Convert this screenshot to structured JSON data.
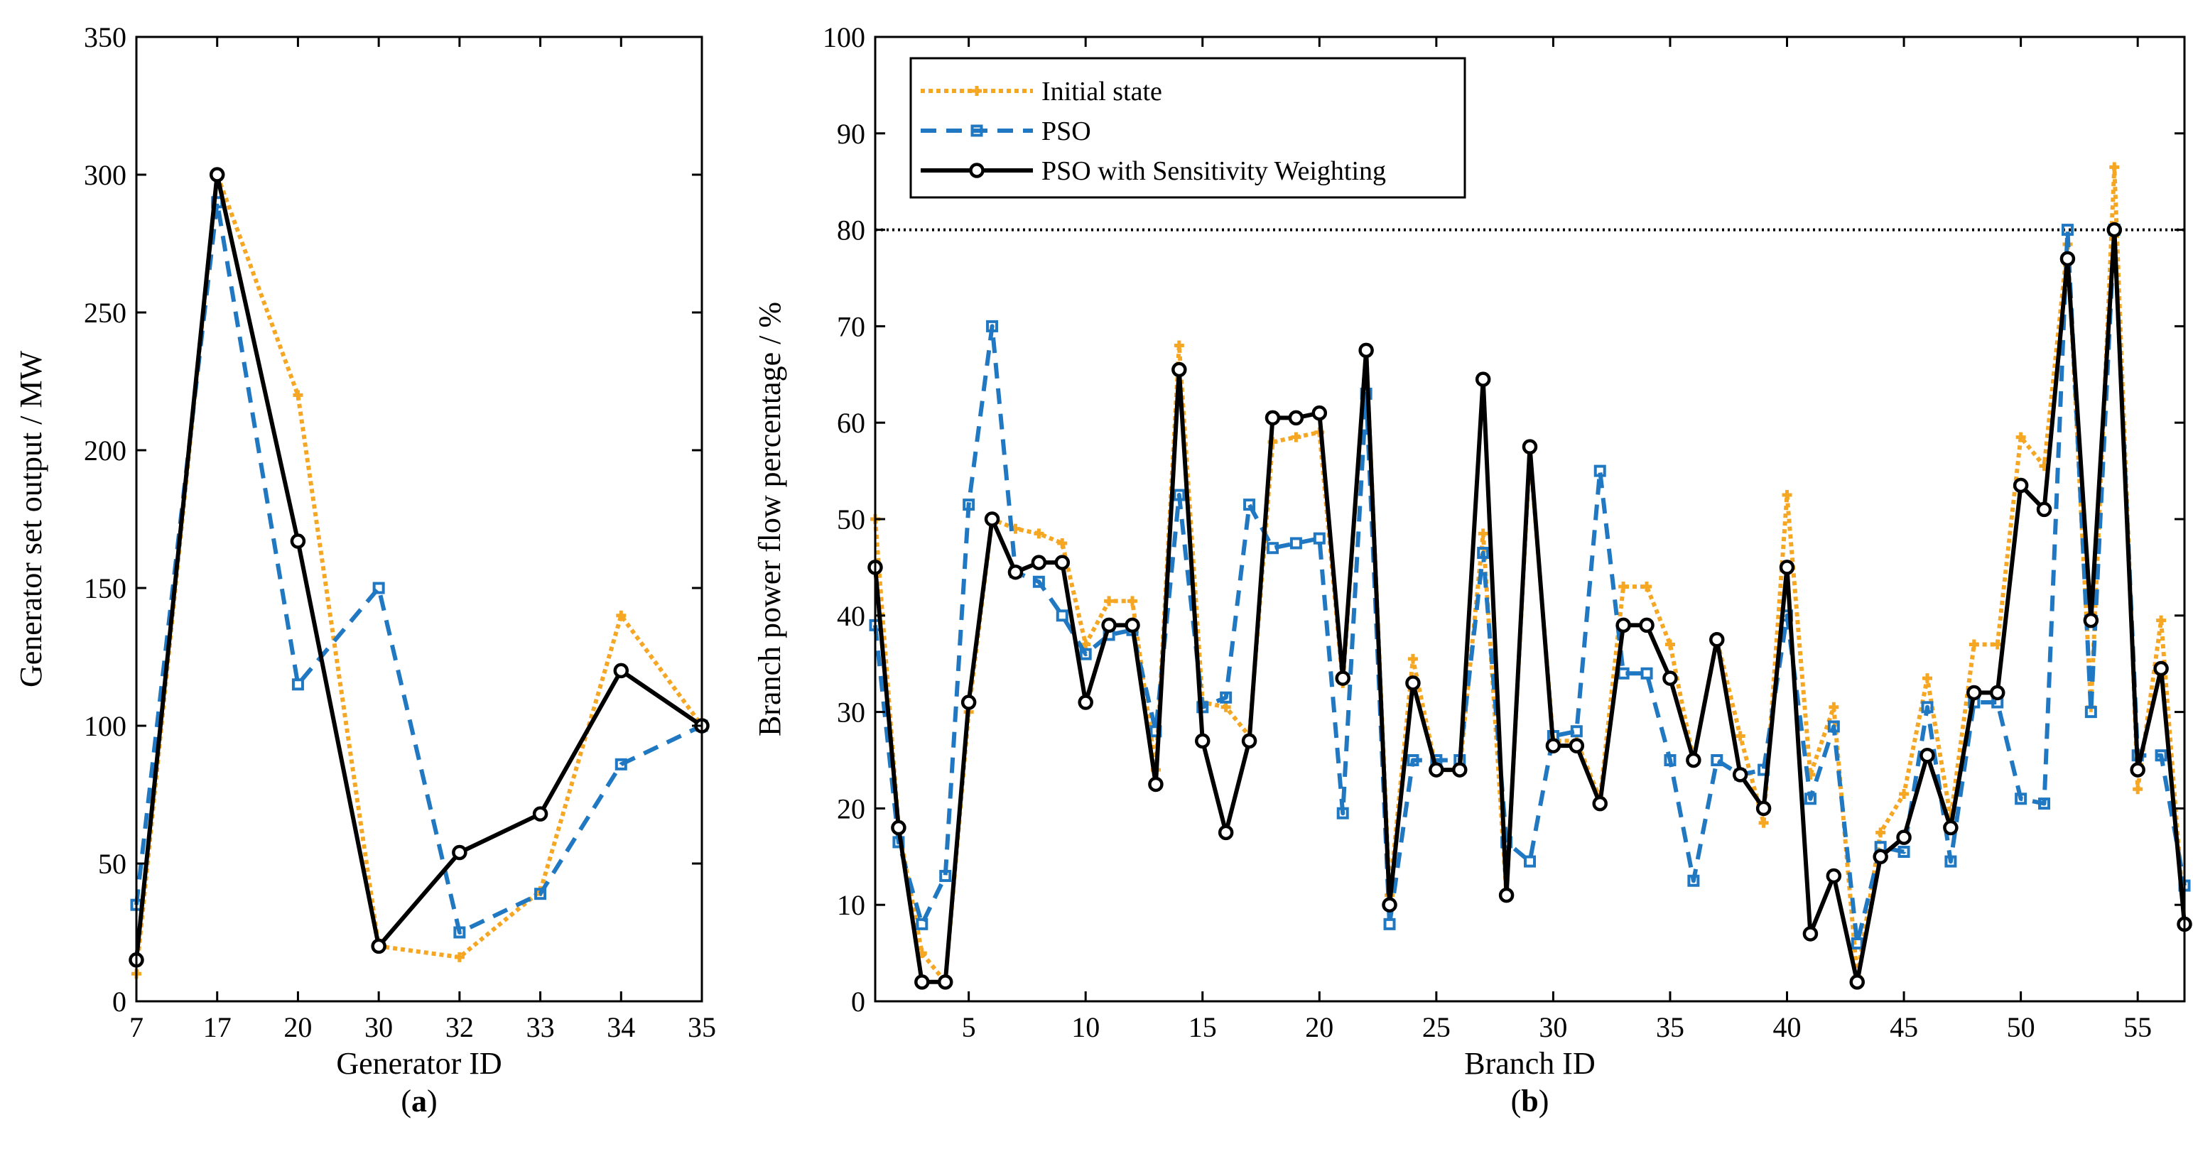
{
  "colors": {
    "initial": "#F5A623",
    "pso": "#1F78C1",
    "psw": "#000000",
    "threshold": "#000000"
  },
  "chart_data": [
    {
      "id": "a",
      "type": "line",
      "panel_label_open": "(",
      "panel_label_letter": "a",
      "panel_label_close": ")",
      "xlabel": "Generator ID",
      "ylabel": "Generator set output / MW",
      "categories": [
        "7",
        "17",
        "20",
        "30",
        "32",
        "33",
        "34",
        "35"
      ],
      "ylim": [
        0,
        350
      ],
      "yticks": [
        0,
        50,
        100,
        150,
        200,
        250,
        300,
        350
      ],
      "series": [
        {
          "name": "Initial state",
          "key": "initial",
          "values": [
            10,
            300,
            220,
            20,
            16,
            40,
            140,
            100
          ]
        },
        {
          "name": "PSO",
          "key": "pso",
          "values": [
            35,
            290,
            115,
            150,
            25,
            39,
            86,
            100
          ]
        },
        {
          "name": "PSO with Sensitivity Weighting",
          "key": "psw",
          "values": [
            15,
            300,
            167,
            20,
            54,
            68,
            120,
            100
          ]
        }
      ]
    },
    {
      "id": "b",
      "type": "line",
      "panel_label_open": "(",
      "panel_label_letter": "b",
      "panel_label_close": ")",
      "xlabel": "Branch ID",
      "ylabel": "Branch power flow percentage / %",
      "xlim": [
        1,
        57
      ],
      "xticks": [
        5,
        10,
        15,
        20,
        25,
        30,
        35,
        40,
        45,
        50,
        55
      ],
      "ylim": [
        0,
        100
      ],
      "yticks": [
        0,
        10,
        20,
        30,
        40,
        50,
        60,
        70,
        80,
        90,
        100
      ],
      "threshold": 80,
      "legend": {
        "position": "top-left",
        "entries": [
          "Initial state",
          "PSO",
          "PSO with Sensitivity Weighting"
        ]
      },
      "series": [
        {
          "name": "Initial state",
          "key": "initial",
          "values": [
            50,
            18,
            5,
            2,
            30,
            50,
            49,
            48.5,
            47.5,
            37,
            41.5,
            41.5,
            24,
            68,
            31,
            30.5,
            27.5,
            58,
            58.5,
            59,
            33,
            67.5,
            11,
            35.5,
            24,
            24,
            48.5,
            11,
            57,
            27,
            27,
            21,
            43,
            43,
            37,
            25,
            37.5,
            27.5,
            18.5,
            52.5,
            23.5,
            30.5,
            2.5,
            17.5,
            21.5,
            33.5,
            19,
            37,
            37,
            58.5,
            55.5,
            78.5,
            30.5,
            86.5,
            22,
            39.5,
            8
          ]
        },
        {
          "name": "PSO",
          "key": "pso",
          "values": [
            39,
            16.5,
            8,
            13,
            51.5,
            70,
            44.5,
            43.5,
            40,
            36,
            38,
            38.5,
            28,
            52.5,
            30.5,
            31.5,
            51.5,
            47,
            47.5,
            48,
            19.5,
            63,
            8,
            25,
            25,
            25,
            46.5,
            16.5,
            14.5,
            27.5,
            28,
            55,
            34,
            34,
            25,
            12.5,
            25,
            23.5,
            24,
            40,
            21,
            28.5,
            6,
            16,
            15.5,
            30.5,
            14.5,
            31,
            31,
            21,
            20.5,
            80,
            30,
            80,
            25.5,
            25.5,
            12
          ]
        },
        {
          "name": "PSO with Sensitivity Weighting",
          "key": "psw",
          "values": [
            45,
            18,
            2,
            2,
            31,
            50,
            44.5,
            45.5,
            45.5,
            31,
            39,
            39,
            22.5,
            65.5,
            27,
            17.5,
            27,
            60.5,
            60.5,
            61,
            33.5,
            67.5,
            10,
            33,
            24,
            24,
            64.5,
            11,
            57.5,
            26.5,
            26.5,
            20.5,
            39,
            39,
            33.5,
            25,
            37.5,
            23.5,
            20,
            45,
            7,
            13,
            2,
            15,
            17,
            25.5,
            18,
            32,
            32,
            53.5,
            51,
            77,
            39.5,
            80,
            24,
            34.5,
            8
          ]
        }
      ]
    }
  ]
}
